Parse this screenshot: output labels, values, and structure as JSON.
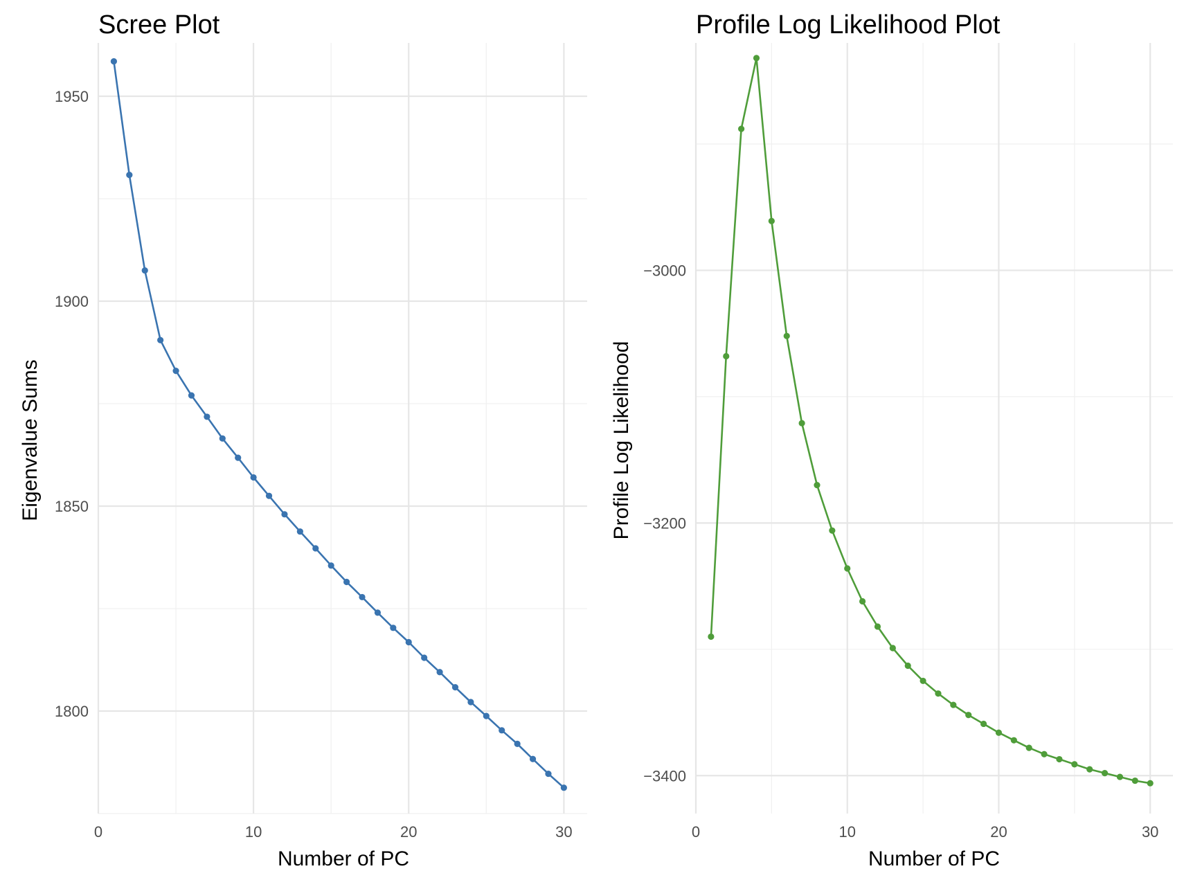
{
  "chart_data": [
    {
      "type": "line",
      "title": "Scree Plot",
      "xlabel": "Number of PC",
      "ylabel": "Eigenvalue Sums",
      "color": "#3a74b0",
      "xlim": [
        0,
        31.5
      ],
      "ylim": [
        1775,
        1963
      ],
      "x_major_ticks": [
        0,
        10,
        20,
        30
      ],
      "x_minor_ticks": [
        5,
        15,
        25
      ],
      "y_major_ticks": [
        1800,
        1850,
        1900,
        1950
      ],
      "y_minor_ticks": [
        1775,
        1825,
        1875,
        1925
      ],
      "grid": true,
      "series": [
        {
          "x": [
            1,
            2,
            3,
            4,
            5,
            6,
            7,
            8,
            9,
            10,
            11,
            12,
            13,
            14,
            15,
            16,
            17,
            18,
            19,
            20,
            21,
            22,
            23,
            24,
            25,
            26,
            27,
            28,
            29,
            30
          ],
          "values": [
            1958.5,
            1930.8,
            1907.5,
            1890.5,
            1883,
            1877,
            1871.8,
            1866.5,
            1861.8,
            1857,
            1852.5,
            1848,
            1843.8,
            1839.7,
            1835.5,
            1831.5,
            1827.8,
            1824,
            1820.3,
            1816.8,
            1813,
            1809.5,
            1805.8,
            1802.2,
            1798.8,
            1795.3,
            1792,
            1788.3,
            1784.7,
            1781.3
          ]
        }
      ]
    },
    {
      "type": "line",
      "title": "Profile Log Likelihood Plot",
      "xlabel": "Number of PC",
      "ylabel": "Profile Log Likelihood",
      "color": "#4f9d3a",
      "xlim": [
        0,
        31.5
      ],
      "ylim": [
        -3430,
        -2820
      ],
      "x_major_ticks": [
        0,
        10,
        20,
        30
      ],
      "x_minor_ticks": [
        5,
        15,
        25
      ],
      "y_major_ticks": [
        -3400,
        -3200,
        -3000
      ],
      "y_minor_ticks": [
        -3300,
        -3100,
        -2900
      ],
      "grid": true,
      "series": [
        {
          "x": [
            1,
            2,
            3,
            4,
            5,
            6,
            7,
            8,
            9,
            10,
            11,
            12,
            13,
            14,
            15,
            16,
            17,
            18,
            19,
            20,
            21,
            22,
            23,
            24,
            25,
            26,
            27,
            28,
            29,
            30
          ],
          "values": [
            -3290,
            -3068,
            -2888,
            -2832,
            -2961,
            -3052,
            -3121,
            -3170,
            -3206,
            -3236,
            -3262,
            -3282,
            -3299,
            -3313,
            -3325,
            -3335,
            -3344,
            -3352,
            -3359,
            -3366,
            -3372,
            -3378,
            -3383,
            -3387,
            -3391,
            -3395,
            -3398,
            -3401,
            -3404,
            -3406
          ]
        }
      ]
    }
  ]
}
